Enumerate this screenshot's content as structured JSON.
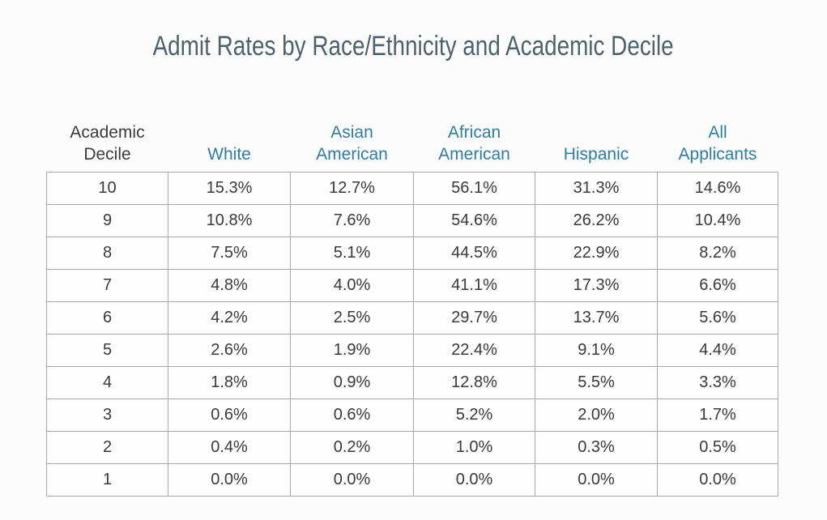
{
  "title": "Admit Rates by Race/Ethnicity and Academic Decile",
  "colors": {
    "title_text": "#4d626c",
    "header_teal": "#2e7da4",
    "header_dark": "#3b3b3b",
    "body_text": "#3a3a3a",
    "grid_border": "#a8a8a8",
    "background": "#fcfcfc"
  },
  "chart_data": {
    "type": "table",
    "title": "Admit Rates by Race/Ethnicity and Academic Decile",
    "columns": [
      "Academic Decile",
      "White",
      "Asian American",
      "African American",
      "Hispanic",
      "All Applicants"
    ],
    "rows": [
      [
        "10",
        "15.3%",
        "12.7%",
        "56.1%",
        "31.3%",
        "14.6%"
      ],
      [
        "9",
        "10.8%",
        "7.6%",
        "54.6%",
        "26.2%",
        "10.4%"
      ],
      [
        "8",
        "7.5%",
        "5.1%",
        "44.5%",
        "22.9%",
        "8.2%"
      ],
      [
        "7",
        "4.8%",
        "4.0%",
        "41.1%",
        "17.3%",
        "6.6%"
      ],
      [
        "6",
        "4.2%",
        "2.5%",
        "29.7%",
        "13.7%",
        "5.6%"
      ],
      [
        "5",
        "2.6%",
        "1.9%",
        "22.4%",
        "9.1%",
        "4.4%"
      ],
      [
        "4",
        "1.8%",
        "0.9%",
        "12.8%",
        "5.5%",
        "3.3%"
      ],
      [
        "3",
        "0.6%",
        "0.6%",
        "5.2%",
        "2.0%",
        "1.7%"
      ],
      [
        "2",
        "0.4%",
        "0.2%",
        "1.0%",
        "0.3%",
        "0.5%"
      ],
      [
        "1",
        "0.0%",
        "0.0%",
        "0.0%",
        "0.0%",
        "0.0%"
      ]
    ]
  }
}
